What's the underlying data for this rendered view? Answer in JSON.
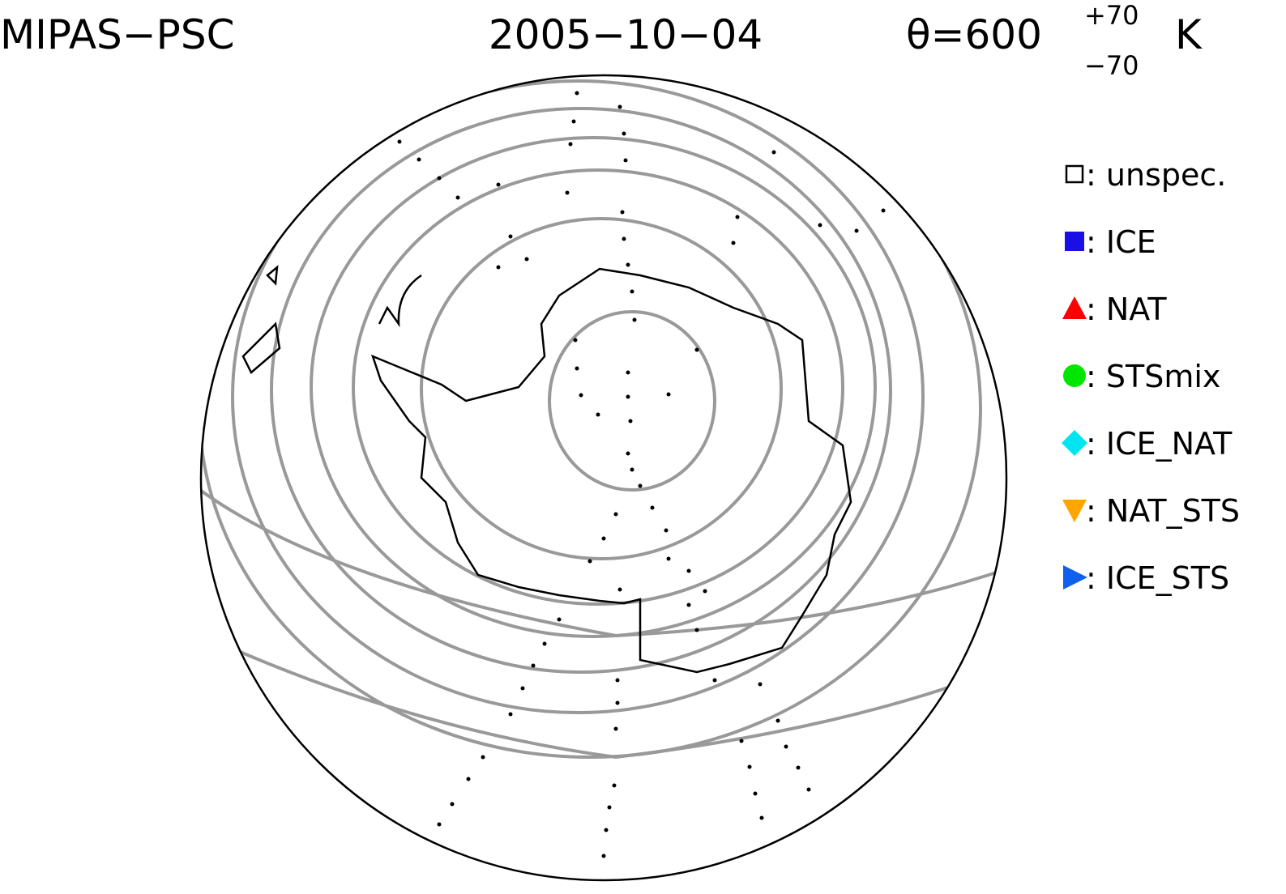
{
  "header": {
    "title": "MIPAS−PSC",
    "date": "2005−10−04",
    "theta": "θ=600",
    "upper": "+70",
    "lower": "−70",
    "unit": "K"
  },
  "legend": [
    {
      "label": ": unspec.",
      "shape": "open-square",
      "color": "#000000"
    },
    {
      "label": ": ICE",
      "shape": "square",
      "color": "#1a10e6"
    },
    {
      "label": ": NAT",
      "shape": "triangle-up",
      "color": "#ff0000"
    },
    {
      "label": ": STSmix",
      "shape": "circle",
      "color": "#00e600"
    },
    {
      "label": ": ICE_NAT",
      "shape": "diamond",
      "color": "#00e6f0"
    },
    {
      "label": ": NAT_STS",
      "shape": "triangle-down",
      "color": "#ffa500"
    },
    {
      "label": ": ICE_STS",
      "shape": "triangle-right",
      "color": "#1060f0"
    }
  ]
}
